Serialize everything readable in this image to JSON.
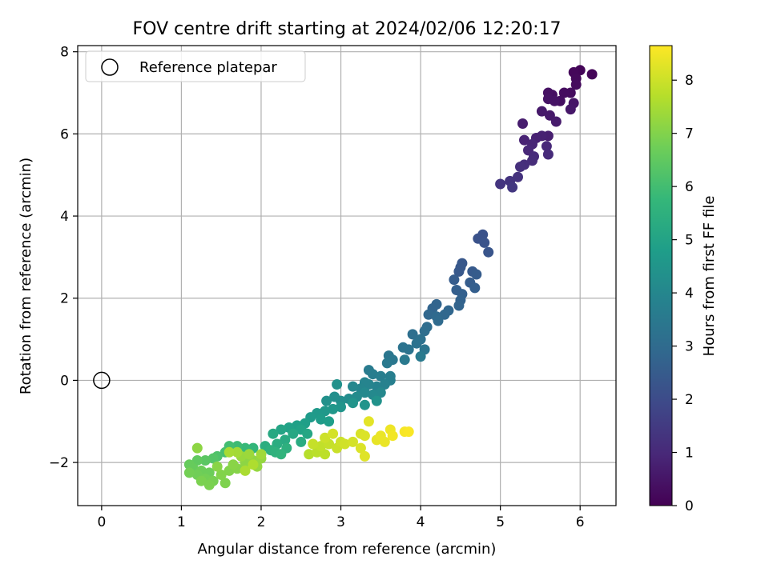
{
  "chart_data": {
    "type": "scatter",
    "title": "FOV centre drift starting at 2024/02/06 12:20:17",
    "xlabel": "Angular distance from reference (arcmin)",
    "ylabel": "Rotation from reference (arcmin)",
    "xlim": [
      -0.3,
      6.45
    ],
    "ylim": [
      -3.05,
      8.15
    ],
    "xticks": [
      0,
      1,
      2,
      3,
      4,
      5,
      6
    ],
    "xtick_labels": [
      "0",
      "1",
      "2",
      "3",
      "4",
      "5",
      "6"
    ],
    "yticks": [
      -2,
      0,
      2,
      4,
      6,
      8
    ],
    "ytick_labels": [
      "−2",
      "0",
      "2",
      "4",
      "6",
      "8"
    ],
    "grid": true,
    "legend": {
      "position": "top-left",
      "entries": [
        "Reference platepar"
      ]
    },
    "reference_point": {
      "label": "Reference platepar",
      "x": 0,
      "y": 0
    },
    "colorbar": {
      "label": "Hours from first FF file",
      "range": [
        0,
        8.65
      ],
      "ticks": [
        0,
        1,
        2,
        3,
        4,
        5,
        6,
        7,
        8
      ],
      "tick_labels": [
        "0",
        "1",
        "2",
        "3",
        "4",
        "5",
        "6",
        "7",
        "8"
      ],
      "colormap": "viridis"
    },
    "colormap_stops": [
      "#440154",
      "#482878",
      "#3e4989",
      "#31688e",
      "#26828e",
      "#1f9e89",
      "#35b779",
      "#6ece58",
      "#b5de2b",
      "#fde725"
    ],
    "points": [
      {
        "x": 6.15,
        "y": 7.45,
        "c": 0.1
      },
      {
        "x": 6.0,
        "y": 7.55,
        "c": 0.1
      },
      {
        "x": 5.92,
        "y": 7.5,
        "c": 0.15
      },
      {
        "x": 5.95,
        "y": 7.35,
        "c": 0.2
      },
      {
        "x": 5.95,
        "y": 7.2,
        "c": 0.25
      },
      {
        "x": 5.88,
        "y": 7.0,
        "c": 0.3
      },
      {
        "x": 5.8,
        "y": 7.0,
        "c": 0.3
      },
      {
        "x": 5.75,
        "y": 6.8,
        "c": 0.35
      },
      {
        "x": 5.65,
        "y": 6.95,
        "c": 0.35
      },
      {
        "x": 5.6,
        "y": 7.0,
        "c": 0.4
      },
      {
        "x": 5.6,
        "y": 6.85,
        "c": 0.45
      },
      {
        "x": 5.68,
        "y": 6.8,
        "c": 0.45
      },
      {
        "x": 5.92,
        "y": 6.75,
        "c": 0.5
      },
      {
        "x": 5.88,
        "y": 6.6,
        "c": 0.55
      },
      {
        "x": 5.62,
        "y": 6.45,
        "c": 0.6
      },
      {
        "x": 5.52,
        "y": 6.55,
        "c": 0.6
      },
      {
        "x": 5.7,
        "y": 6.3,
        "c": 0.65
      },
      {
        "x": 5.28,
        "y": 6.25,
        "c": 0.7
      },
      {
        "x": 5.6,
        "y": 5.95,
        "c": 0.75
      },
      {
        "x": 5.52,
        "y": 5.95,
        "c": 0.8
      },
      {
        "x": 5.45,
        "y": 5.9,
        "c": 0.8
      },
      {
        "x": 5.3,
        "y": 5.85,
        "c": 0.85
      },
      {
        "x": 5.4,
        "y": 5.75,
        "c": 0.9
      },
      {
        "x": 5.35,
        "y": 5.6,
        "c": 0.95
      },
      {
        "x": 5.58,
        "y": 5.7,
        "c": 1.0
      },
      {
        "x": 5.42,
        "y": 5.45,
        "c": 1.05
      },
      {
        "x": 5.6,
        "y": 5.5,
        "c": 1.05
      },
      {
        "x": 5.4,
        "y": 5.35,
        "c": 1.1
      },
      {
        "x": 5.3,
        "y": 5.25,
        "c": 1.15
      },
      {
        "x": 5.25,
        "y": 5.2,
        "c": 1.2
      },
      {
        "x": 5.22,
        "y": 4.95,
        "c": 1.25
      },
      {
        "x": 5.12,
        "y": 4.85,
        "c": 1.3
      },
      {
        "x": 5.0,
        "y": 4.78,
        "c": 1.35
      },
      {
        "x": 5.15,
        "y": 4.7,
        "c": 1.4
      },
      {
        "x": 4.78,
        "y": 3.55,
        "c": 2.2
      },
      {
        "x": 4.72,
        "y": 3.45,
        "c": 2.2
      },
      {
        "x": 4.8,
        "y": 3.35,
        "c": 2.25
      },
      {
        "x": 4.85,
        "y": 3.12,
        "c": 2.3
      },
      {
        "x": 4.52,
        "y": 2.85,
        "c": 2.35
      },
      {
        "x": 4.5,
        "y": 2.75,
        "c": 2.4
      },
      {
        "x": 4.48,
        "y": 2.65,
        "c": 2.4
      },
      {
        "x": 4.65,
        "y": 2.65,
        "c": 2.45
      },
      {
        "x": 4.7,
        "y": 2.58,
        "c": 2.5
      },
      {
        "x": 4.42,
        "y": 2.45,
        "c": 2.5
      },
      {
        "x": 4.62,
        "y": 2.38,
        "c": 2.55
      },
      {
        "x": 4.68,
        "y": 2.25,
        "c": 2.6
      },
      {
        "x": 4.45,
        "y": 2.2,
        "c": 2.6
      },
      {
        "x": 4.52,
        "y": 2.1,
        "c": 2.65
      },
      {
        "x": 4.5,
        "y": 1.95,
        "c": 2.7
      },
      {
        "x": 4.48,
        "y": 1.82,
        "c": 2.75
      },
      {
        "x": 4.2,
        "y": 1.85,
        "c": 2.8
      },
      {
        "x": 4.15,
        "y": 1.75,
        "c": 2.8
      },
      {
        "x": 4.35,
        "y": 1.7,
        "c": 2.85
      },
      {
        "x": 4.3,
        "y": 1.6,
        "c": 2.9
      },
      {
        "x": 4.1,
        "y": 1.6,
        "c": 2.9
      },
      {
        "x": 4.2,
        "y": 1.55,
        "c": 2.95
      },
      {
        "x": 4.22,
        "y": 1.45,
        "c": 3.0
      },
      {
        "x": 4.08,
        "y": 1.3,
        "c": 3.05
      },
      {
        "x": 4.05,
        "y": 1.2,
        "c": 3.1
      },
      {
        "x": 3.9,
        "y": 1.12,
        "c": 3.15
      },
      {
        "x": 4.0,
        "y": 1.0,
        "c": 3.2
      },
      {
        "x": 3.95,
        "y": 0.9,
        "c": 3.25
      },
      {
        "x": 3.78,
        "y": 0.8,
        "c": 3.3
      },
      {
        "x": 3.85,
        "y": 0.75,
        "c": 3.3
      },
      {
        "x": 4.05,
        "y": 0.75,
        "c": 3.35
      },
      {
        "x": 3.6,
        "y": 0.6,
        "c": 3.4
      },
      {
        "x": 3.65,
        "y": 0.5,
        "c": 3.45
      },
      {
        "x": 3.58,
        "y": 0.42,
        "c": 3.5
      },
      {
        "x": 3.8,
        "y": 0.5,
        "c": 3.5
      },
      {
        "x": 4.0,
        "y": 0.58,
        "c": 3.55
      },
      {
        "x": 3.35,
        "y": 0.25,
        "c": 3.6
      },
      {
        "x": 3.4,
        "y": 0.15,
        "c": 3.65
      },
      {
        "x": 3.5,
        "y": 0.1,
        "c": 3.7
      },
      {
        "x": 3.62,
        "y": 0.1,
        "c": 3.7
      },
      {
        "x": 3.62,
        "y": 0.0,
        "c": 3.75
      },
      {
        "x": 3.55,
        "y": -0.1,
        "c": 3.8
      },
      {
        "x": 3.45,
        "y": -0.15,
        "c": 3.85
      },
      {
        "x": 3.35,
        "y": -0.1,
        "c": 3.9
      },
      {
        "x": 3.3,
        "y": -0.05,
        "c": 3.9
      },
      {
        "x": 3.25,
        "y": -0.2,
        "c": 3.95
      },
      {
        "x": 3.15,
        "y": -0.15,
        "c": 4.0
      },
      {
        "x": 3.5,
        "y": -0.3,
        "c": 4.05
      },
      {
        "x": 3.4,
        "y": -0.35,
        "c": 4.1
      },
      {
        "x": 3.3,
        "y": -0.3,
        "c": 4.1
      },
      {
        "x": 3.2,
        "y": -0.4,
        "c": 4.15
      },
      {
        "x": 3.1,
        "y": -0.45,
        "c": 4.2
      },
      {
        "x": 3.0,
        "y": -0.5,
        "c": 4.25
      },
      {
        "x": 2.92,
        "y": -0.4,
        "c": 4.3
      },
      {
        "x": 2.82,
        "y": -0.5,
        "c": 4.35
      },
      {
        "x": 2.95,
        "y": -0.1,
        "c": 4.35
      },
      {
        "x": 3.45,
        "y": -0.5,
        "c": 4.4
      },
      {
        "x": 3.3,
        "y": -0.6,
        "c": 4.45
      },
      {
        "x": 3.15,
        "y": -0.55,
        "c": 4.45
      },
      {
        "x": 3.0,
        "y": -0.65,
        "c": 4.5
      },
      {
        "x": 2.9,
        "y": -0.7,
        "c": 4.55
      },
      {
        "x": 2.8,
        "y": -0.75,
        "c": 4.6
      },
      {
        "x": 2.7,
        "y": -0.8,
        "c": 4.65
      },
      {
        "x": 2.62,
        "y": -0.9,
        "c": 4.7
      },
      {
        "x": 2.75,
        "y": -0.95,
        "c": 4.75
      },
      {
        "x": 2.85,
        "y": -1.0,
        "c": 4.8
      },
      {
        "x": 2.55,
        "y": -1.05,
        "c": 4.85
      },
      {
        "x": 2.45,
        "y": -1.1,
        "c": 4.9
      },
      {
        "x": 2.35,
        "y": -1.15,
        "c": 4.95
      },
      {
        "x": 2.5,
        "y": -1.2,
        "c": 5.0
      },
      {
        "x": 2.25,
        "y": -1.2,
        "c": 5.05
      },
      {
        "x": 2.58,
        "y": -1.3,
        "c": 5.1
      },
      {
        "x": 2.4,
        "y": -1.3,
        "c": 5.15
      },
      {
        "x": 2.15,
        "y": -1.3,
        "c": 5.2
      },
      {
        "x": 2.3,
        "y": -1.45,
        "c": 5.25
      },
      {
        "x": 2.5,
        "y": -1.5,
        "c": 5.3
      },
      {
        "x": 2.2,
        "y": -1.55,
        "c": 5.35
      },
      {
        "x": 2.05,
        "y": -1.6,
        "c": 5.4
      },
      {
        "x": 2.32,
        "y": -1.65,
        "c": 5.45
      },
      {
        "x": 2.12,
        "y": -1.7,
        "c": 5.5
      },
      {
        "x": 2.18,
        "y": -1.75,
        "c": 5.55
      },
      {
        "x": 2.25,
        "y": -1.8,
        "c": 5.6
      },
      {
        "x": 1.9,
        "y": -1.65,
        "c": 5.7
      },
      {
        "x": 1.8,
        "y": -1.65,
        "c": 5.8
      },
      {
        "x": 1.7,
        "y": -1.6,
        "c": 5.9
      },
      {
        "x": 1.6,
        "y": -1.6,
        "c": 6.0
      },
      {
        "x": 1.55,
        "y": -1.75,
        "c": 6.1
      },
      {
        "x": 1.45,
        "y": -1.85,
        "c": 6.2
      },
      {
        "x": 1.4,
        "y": -1.9,
        "c": 6.3
      },
      {
        "x": 1.3,
        "y": -1.95,
        "c": 6.4
      },
      {
        "x": 1.2,
        "y": -1.95,
        "c": 6.5
      },
      {
        "x": 1.1,
        "y": -2.05,
        "c": 6.6
      },
      {
        "x": 1.15,
        "y": -2.15,
        "c": 6.6
      },
      {
        "x": 1.25,
        "y": -2.2,
        "c": 6.7
      },
      {
        "x": 1.35,
        "y": -2.25,
        "c": 6.7
      },
      {
        "x": 1.2,
        "y": -2.3,
        "c": 6.75
      },
      {
        "x": 1.1,
        "y": -2.25,
        "c": 6.8
      },
      {
        "x": 1.3,
        "y": -2.4,
        "c": 6.8
      },
      {
        "x": 1.4,
        "y": -2.45,
        "c": 6.85
      },
      {
        "x": 1.35,
        "y": -2.55,
        "c": 6.9
      },
      {
        "x": 1.25,
        "y": -2.45,
        "c": 6.9
      },
      {
        "x": 1.55,
        "y": -2.5,
        "c": 6.95
      },
      {
        "x": 1.5,
        "y": -2.3,
        "c": 7.0
      },
      {
        "x": 1.6,
        "y": -2.2,
        "c": 7.0
      },
      {
        "x": 1.7,
        "y": -2.15,
        "c": 7.05
      },
      {
        "x": 1.65,
        "y": -2.05,
        "c": 7.1
      },
      {
        "x": 1.45,
        "y": -2.1,
        "c": 7.1
      },
      {
        "x": 1.2,
        "y": -1.65,
        "c": 7.15
      },
      {
        "x": 1.8,
        "y": -2.0,
        "c": 7.15
      },
      {
        "x": 1.9,
        "y": -1.95,
        "c": 7.2
      },
      {
        "x": 2.0,
        "y": -1.9,
        "c": 7.25
      },
      {
        "x": 1.95,
        "y": -2.1,
        "c": 7.25
      },
      {
        "x": 1.75,
        "y": -1.85,
        "c": 7.3
      },
      {
        "x": 1.85,
        "y": -1.8,
        "c": 7.35
      },
      {
        "x": 2.0,
        "y": -1.8,
        "c": 7.4
      },
      {
        "x": 1.7,
        "y": -1.75,
        "c": 7.45
      },
      {
        "x": 1.6,
        "y": -1.75,
        "c": 7.5
      },
      {
        "x": 1.8,
        "y": -2.2,
        "c": 7.55
      },
      {
        "x": 1.9,
        "y": -2.05,
        "c": 7.6
      },
      {
        "x": 2.6,
        "y": -1.8,
        "c": 7.7
      },
      {
        "x": 2.7,
        "y": -1.75,
        "c": 7.75
      },
      {
        "x": 2.8,
        "y": -1.8,
        "c": 7.8
      },
      {
        "x": 2.75,
        "y": -1.6,
        "c": 7.85
      },
      {
        "x": 2.85,
        "y": -1.55,
        "c": 7.9
      },
      {
        "x": 2.95,
        "y": -1.65,
        "c": 7.95
      },
      {
        "x": 3.0,
        "y": -1.5,
        "c": 8.0
      },
      {
        "x": 2.8,
        "y": -1.4,
        "c": 8.0
      },
      {
        "x": 3.05,
        "y": -1.55,
        "c": 8.05
      },
      {
        "x": 3.15,
        "y": -1.5,
        "c": 8.1
      },
      {
        "x": 2.9,
        "y": -1.3,
        "c": 8.1
      },
      {
        "x": 3.25,
        "y": -1.3,
        "c": 8.15
      },
      {
        "x": 3.3,
        "y": -1.35,
        "c": 8.2
      },
      {
        "x": 3.25,
        "y": -1.65,
        "c": 8.2
      },
      {
        "x": 3.3,
        "y": -1.85,
        "c": 8.25
      },
      {
        "x": 3.35,
        "y": -1.0,
        "c": 8.3
      },
      {
        "x": 3.45,
        "y": -1.45,
        "c": 8.35
      },
      {
        "x": 3.5,
        "y": -1.35,
        "c": 8.4
      },
      {
        "x": 3.55,
        "y": -1.5,
        "c": 8.4
      },
      {
        "x": 3.62,
        "y": -1.2,
        "c": 8.45
      },
      {
        "x": 3.65,
        "y": -1.35,
        "c": 8.5
      },
      {
        "x": 3.8,
        "y": -1.25,
        "c": 8.55
      },
      {
        "x": 3.85,
        "y": -1.25,
        "c": 8.6
      },
      {
        "x": 2.65,
        "y": -1.55,
        "c": 7.9
      }
    ]
  }
}
